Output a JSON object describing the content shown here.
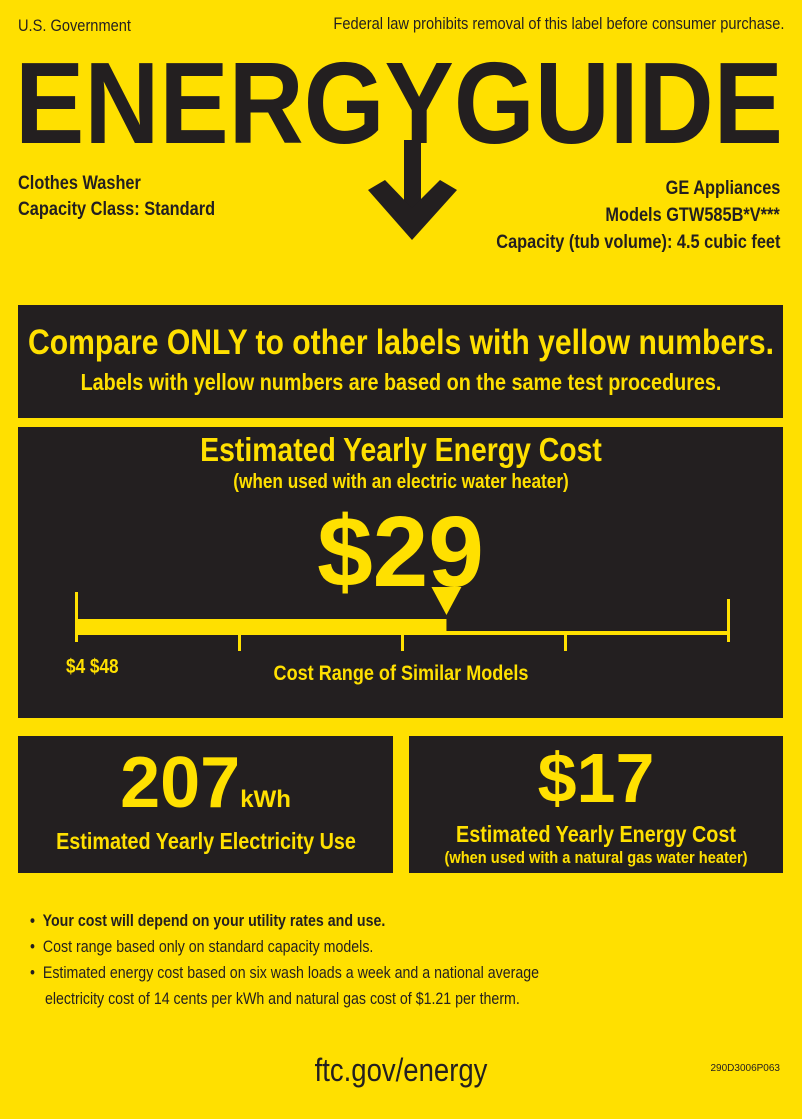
{
  "header": {
    "government": "U.S. Government",
    "notice": "Federal law prohibits removal of this label before consumer purchase.",
    "logo_text": "ENERGYGUIDE"
  },
  "product": {
    "type": "Clothes Washer",
    "capacity_class": "Capacity Class: Standard",
    "brand": "GE Appliances",
    "models": "Models GTW585B*V***",
    "capacity": "Capacity (tub volume): 4.5 cubic feet"
  },
  "compare": {
    "line1": "Compare ONLY to other labels with yellow numbers.",
    "line2": "Labels with yellow numbers are based on the same test procedures."
  },
  "electric_cost": {
    "title": "Estimated Yearly Energy Cost",
    "subtitle": "(when used with an electric water heater)",
    "value": "$29",
    "value_number": 29,
    "range_min_label": "$4",
    "range_max_label": "$48",
    "range_min": 4,
    "range_max": 48,
    "range_label": "Cost Range of Similar Models"
  },
  "electricity_use": {
    "value": "207",
    "unit": "kWh",
    "label": "Estimated Yearly Electricity Use"
  },
  "gas_cost": {
    "value": "$17",
    "title": "Estimated Yearly Energy Cost",
    "subtitle": "(when used with a natural gas water heater)"
  },
  "notes": [
    "Your cost will depend on your utility rates and use.",
    "Cost range based only on standard capacity models.",
    "Estimated energy cost based on six wash loads a week and a national average",
    "electricity cost of 14 cents per kWh and natural gas cost of $1.21 per therm."
  ],
  "footer": {
    "url": "ftc.gov/energy",
    "code": "290D3006P063"
  },
  "colors": {
    "yellow": "#ffe000",
    "dark": "#231f20"
  }
}
